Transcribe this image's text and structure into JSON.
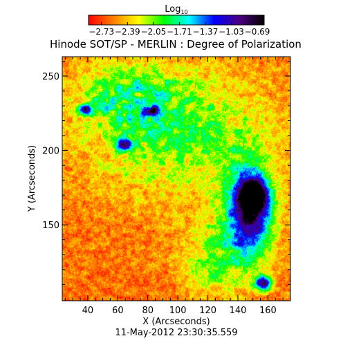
{
  "chart_data": {
    "type": "heatmap",
    "title": "Hinode SOT/SP - MERLIN : Degree of Polarization",
    "subtitle": "11-May-2012 23:30:35.559",
    "xlabel": "X (Arcseconds)",
    "ylabel": "Y (Arcseconds)",
    "xlim": [
      23,
      175
    ],
    "ylim": [
      99,
      263
    ],
    "x_ticks": [
      40,
      60,
      80,
      100,
      120,
      140,
      160
    ],
    "y_ticks": [
      150,
      200,
      250
    ],
    "colorbar": {
      "label": "Log",
      "label_subscript": "10",
      "ticks": [
        "-2.73",
        "-2.39",
        "-2.05",
        "-1.71",
        "-1.37",
        "-1.03",
        "-0.69"
      ],
      "range": [
        -2.9,
        -0.6
      ],
      "colors": [
        "#ff0000",
        "#ff7f00",
        "#ffff00",
        "#00ff00",
        "#00ffff",
        "#0000ff",
        "#4b0082",
        "#000000"
      ]
    },
    "field": {
      "background": -2.6,
      "features": [
        {
          "kind": "spot",
          "x": 148,
          "y": 160,
          "sx": 19,
          "sy": 36,
          "value": -0.85
        },
        {
          "kind": "spot",
          "x": 150,
          "y": 170,
          "sx": 10,
          "sy": 12,
          "value": -0.72
        },
        {
          "kind": "spot",
          "x": 157,
          "y": 111,
          "sx": 7,
          "sy": 6,
          "value": -0.9
        },
        {
          "kind": "spot",
          "x": 38,
          "y": 228,
          "sx": 5,
          "sy": 4,
          "value": -1.2
        },
        {
          "kind": "spot",
          "x": 64,
          "y": 204,
          "sx": 7,
          "sy": 5,
          "value": -1.2
        },
        {
          "kind": "spot",
          "x": 82,
          "y": 227,
          "sx": 6,
          "sy": 4,
          "value": -1.4
        },
        {
          "kind": "network",
          "x": 100,
          "y": 212,
          "sx": 60,
          "sy": 40,
          "value": -1.9
        },
        {
          "kind": "network",
          "x": 64,
          "y": 238,
          "sx": 32,
          "sy": 20,
          "value": -2.05
        },
        {
          "kind": "network",
          "x": 128,
          "y": 128,
          "sx": 24,
          "sy": 28,
          "value": -2.0
        }
      ]
    }
  }
}
